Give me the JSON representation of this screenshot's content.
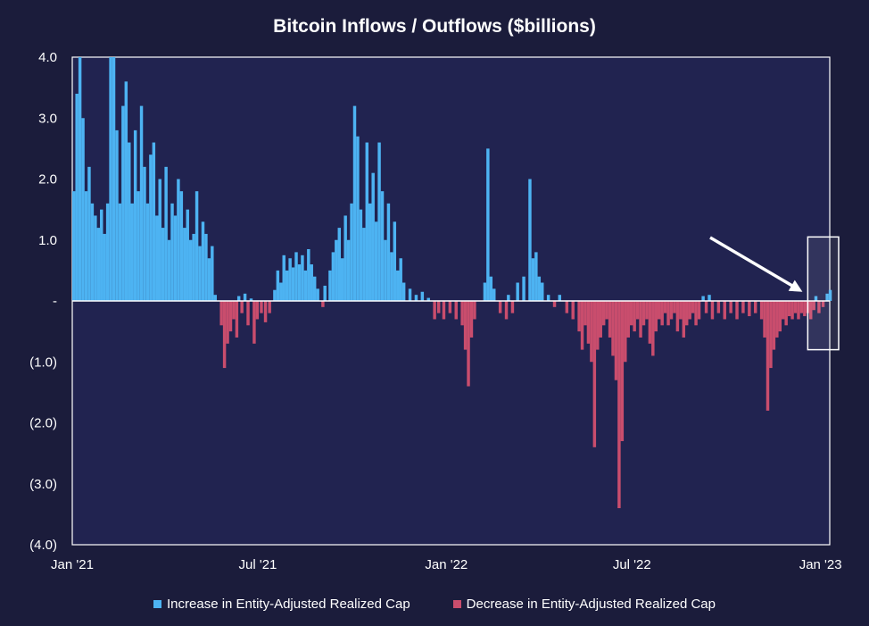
{
  "chart_data": {
    "type": "bar",
    "title": "Bitcoin Inflows / Outflows ($billions)",
    "xlabel": "",
    "ylabel": "",
    "ylim": [
      -4.0,
      4.0
    ],
    "y_tick_labels": [
      "4.0",
      "3.0",
      "2.0",
      "1.0",
      "-",
      "(1.0)",
      "(2.0)",
      "(3.0)",
      "(4.0)"
    ],
    "y_tick_values": [
      4,
      3,
      2,
      1,
      0,
      -1,
      -2,
      -3,
      -4
    ],
    "x_tick_labels": [
      "Jan '21",
      "Jul '21",
      "Jan '22",
      "Jul '22",
      "Jan '23"
    ],
    "x_tick_dates": [
      "2021-01-01",
      "2021-07-01",
      "2022-01-01",
      "2022-07-01",
      "2023-01-01"
    ],
    "x_range": [
      "2021-01-01",
      "2023-01-10"
    ],
    "grid": false,
    "legend_placement": "bottom",
    "series": [
      {
        "name": "Increase in Entity-Adjusted Realized Cap",
        "color": "#4db3f2",
        "points": [
          [
            "2021-01-01",
            1.8
          ],
          [
            "2021-01-04",
            3.4
          ],
          [
            "2021-01-07",
            4.0
          ],
          [
            "2021-01-10",
            3.0
          ],
          [
            "2021-01-13",
            1.8
          ],
          [
            "2021-01-16",
            2.2
          ],
          [
            "2021-01-19",
            1.6
          ],
          [
            "2021-01-22",
            1.4
          ],
          [
            "2021-01-25",
            1.2
          ],
          [
            "2021-01-28",
            1.5
          ],
          [
            "2021-01-31",
            1.1
          ],
          [
            "2021-02-03",
            1.6
          ],
          [
            "2021-02-06",
            4.0
          ],
          [
            "2021-02-09",
            4.0
          ],
          [
            "2021-02-12",
            2.8
          ],
          [
            "2021-02-15",
            1.6
          ],
          [
            "2021-02-18",
            3.2
          ],
          [
            "2021-02-21",
            3.6
          ],
          [
            "2021-02-24",
            2.6
          ],
          [
            "2021-02-27",
            1.6
          ],
          [
            "2021-03-02",
            2.8
          ],
          [
            "2021-03-05",
            1.8
          ],
          [
            "2021-03-08",
            3.2
          ],
          [
            "2021-03-11",
            2.2
          ],
          [
            "2021-03-14",
            1.6
          ],
          [
            "2021-03-17",
            2.4
          ],
          [
            "2021-03-20",
            2.6
          ],
          [
            "2021-03-23",
            1.4
          ],
          [
            "2021-03-26",
            2.0
          ],
          [
            "2021-03-29",
            1.2
          ],
          [
            "2021-04-01",
            2.2
          ],
          [
            "2021-04-04",
            1.0
          ],
          [
            "2021-04-07",
            1.6
          ],
          [
            "2021-04-10",
            1.4
          ],
          [
            "2021-04-13",
            2.0
          ],
          [
            "2021-04-16",
            1.8
          ],
          [
            "2021-04-19",
            1.2
          ],
          [
            "2021-04-22",
            1.5
          ],
          [
            "2021-04-25",
            1.0
          ],
          [
            "2021-04-28",
            1.1
          ],
          [
            "2021-05-01",
            1.8
          ],
          [
            "2021-05-04",
            0.9
          ],
          [
            "2021-05-07",
            1.3
          ],
          [
            "2021-05-10",
            1.1
          ],
          [
            "2021-05-13",
            0.7
          ],
          [
            "2021-05-16",
            0.9
          ],
          [
            "2021-05-19",
            0.1
          ],
          [
            "2021-06-11",
            0.08
          ],
          [
            "2021-06-17",
            0.12
          ],
          [
            "2021-06-23",
            0.04
          ],
          [
            "2021-07-16",
            0.18
          ],
          [
            "2021-07-19",
            0.5
          ],
          [
            "2021-07-22",
            0.3
          ],
          [
            "2021-07-25",
            0.75
          ],
          [
            "2021-07-28",
            0.5
          ],
          [
            "2021-07-31",
            0.7
          ],
          [
            "2021-08-03",
            0.55
          ],
          [
            "2021-08-06",
            0.8
          ],
          [
            "2021-08-09",
            0.6
          ],
          [
            "2021-08-12",
            0.75
          ],
          [
            "2021-08-15",
            0.5
          ],
          [
            "2021-08-18",
            0.85
          ],
          [
            "2021-08-21",
            0.6
          ],
          [
            "2021-08-24",
            0.4
          ],
          [
            "2021-08-27",
            0.2
          ],
          [
            "2021-09-03",
            0.25
          ],
          [
            "2021-09-08",
            0.5
          ],
          [
            "2021-09-11",
            0.8
          ],
          [
            "2021-09-14",
            1.0
          ],
          [
            "2021-09-17",
            1.2
          ],
          [
            "2021-09-20",
            0.7
          ],
          [
            "2021-09-23",
            1.4
          ],
          [
            "2021-09-26",
            1.0
          ],
          [
            "2021-09-29",
            1.6
          ],
          [
            "2021-10-02",
            3.2
          ],
          [
            "2021-10-05",
            2.7
          ],
          [
            "2021-10-08",
            1.5
          ],
          [
            "2021-10-11",
            1.2
          ],
          [
            "2021-10-14",
            2.6
          ],
          [
            "2021-10-17",
            1.6
          ],
          [
            "2021-10-20",
            2.1
          ],
          [
            "2021-10-23",
            1.3
          ],
          [
            "2021-10-26",
            2.6
          ],
          [
            "2021-10-29",
            1.8
          ],
          [
            "2021-11-01",
            1.0
          ],
          [
            "2021-11-04",
            1.6
          ],
          [
            "2021-11-07",
            0.8
          ],
          [
            "2021-11-10",
            1.3
          ],
          [
            "2021-11-13",
            0.5
          ],
          [
            "2021-11-16",
            0.7
          ],
          [
            "2021-11-19",
            0.3
          ],
          [
            "2021-11-25",
            0.2
          ],
          [
            "2021-12-01",
            0.1
          ],
          [
            "2021-12-07",
            0.15
          ],
          [
            "2021-12-13",
            0.05
          ],
          [
            "2022-02-06",
            0.3
          ],
          [
            "2022-02-09",
            2.5
          ],
          [
            "2022-02-12",
            0.4
          ],
          [
            "2022-02-15",
            0.2
          ],
          [
            "2022-03-01",
            0.1
          ],
          [
            "2022-03-10",
            0.3
          ],
          [
            "2022-03-16",
            0.4
          ],
          [
            "2022-03-22",
            2.0
          ],
          [
            "2022-03-25",
            0.7
          ],
          [
            "2022-03-28",
            0.8
          ],
          [
            "2022-03-31",
            0.4
          ],
          [
            "2022-04-03",
            0.3
          ],
          [
            "2022-04-09",
            0.1
          ],
          [
            "2022-04-20",
            0.1
          ],
          [
            "2022-09-07",
            0.08
          ],
          [
            "2022-09-13",
            0.1
          ],
          [
            "2022-12-26",
            0.08
          ],
          [
            "2023-01-06",
            0.12
          ],
          [
            "2023-01-09",
            0.18
          ]
        ]
      },
      {
        "name": "Decrease in Entity-Adjusted Realized Cap",
        "color": "#c94d6d",
        "points": [
          [
            "2021-05-25",
            -0.4
          ],
          [
            "2021-05-28",
            -1.1
          ],
          [
            "2021-05-31",
            -0.7
          ],
          [
            "2021-06-03",
            -0.5
          ],
          [
            "2021-06-06",
            -0.3
          ],
          [
            "2021-06-09",
            -0.6
          ],
          [
            "2021-06-14",
            -0.2
          ],
          [
            "2021-06-20",
            -0.4
          ],
          [
            "2021-06-26",
            -0.7
          ],
          [
            "2021-06-29",
            -0.3
          ],
          [
            "2021-07-03",
            -0.2
          ],
          [
            "2021-07-07",
            -0.35
          ],
          [
            "2021-07-11",
            -0.2
          ],
          [
            "2021-09-01",
            -0.1
          ],
          [
            "2021-12-19",
            -0.3
          ],
          [
            "2021-12-23",
            -0.2
          ],
          [
            "2021-12-28",
            -0.3
          ],
          [
            "2022-01-03",
            -0.2
          ],
          [
            "2022-01-09",
            -0.3
          ],
          [
            "2022-01-15",
            -0.4
          ],
          [
            "2022-01-18",
            -0.8
          ],
          [
            "2022-01-21",
            -1.4
          ],
          [
            "2022-01-24",
            -0.6
          ],
          [
            "2022-01-27",
            -0.3
          ],
          [
            "2022-02-21",
            -0.2
          ],
          [
            "2022-02-27",
            -0.3
          ],
          [
            "2022-03-05",
            -0.2
          ],
          [
            "2022-04-15",
            -0.1
          ],
          [
            "2022-04-27",
            -0.2
          ],
          [
            "2022-05-03",
            -0.3
          ],
          [
            "2022-05-09",
            -0.5
          ],
          [
            "2022-05-12",
            -0.8
          ],
          [
            "2022-05-15",
            -0.4
          ],
          [
            "2022-05-18",
            -0.7
          ],
          [
            "2022-05-21",
            -1.0
          ],
          [
            "2022-05-24",
            -2.4
          ],
          [
            "2022-05-27",
            -0.8
          ],
          [
            "2022-05-30",
            -0.6
          ],
          [
            "2022-06-02",
            -0.4
          ],
          [
            "2022-06-05",
            -0.3
          ],
          [
            "2022-06-08",
            -0.6
          ],
          [
            "2022-06-11",
            -0.9
          ],
          [
            "2022-06-14",
            -1.3
          ],
          [
            "2022-06-17",
            -3.4
          ],
          [
            "2022-06-20",
            -2.3
          ],
          [
            "2022-06-23",
            -1.0
          ],
          [
            "2022-06-26",
            -0.6
          ],
          [
            "2022-06-29",
            -0.4
          ],
          [
            "2022-07-02",
            -0.5
          ],
          [
            "2022-07-05",
            -0.3
          ],
          [
            "2022-07-08",
            -0.6
          ],
          [
            "2022-07-11",
            -0.4
          ],
          [
            "2022-07-14",
            -0.3
          ],
          [
            "2022-07-17",
            -0.7
          ],
          [
            "2022-07-20",
            -0.9
          ],
          [
            "2022-07-23",
            -0.5
          ],
          [
            "2022-07-26",
            -0.3
          ],
          [
            "2022-07-29",
            -0.4
          ],
          [
            "2022-08-01",
            -0.2
          ],
          [
            "2022-08-04",
            -0.4
          ],
          [
            "2022-08-07",
            -0.3
          ],
          [
            "2022-08-10",
            -0.2
          ],
          [
            "2022-08-13",
            -0.5
          ],
          [
            "2022-08-16",
            -0.3
          ],
          [
            "2022-08-19",
            -0.6
          ],
          [
            "2022-08-22",
            -0.4
          ],
          [
            "2022-08-25",
            -0.3
          ],
          [
            "2022-08-28",
            -0.2
          ],
          [
            "2022-08-31",
            -0.4
          ],
          [
            "2022-09-03",
            -0.3
          ],
          [
            "2022-09-10",
            -0.2
          ],
          [
            "2022-09-16",
            -0.3
          ],
          [
            "2022-09-22",
            -0.2
          ],
          [
            "2022-09-28",
            -0.3
          ],
          [
            "2022-10-04",
            -0.2
          ],
          [
            "2022-10-10",
            -0.3
          ],
          [
            "2022-10-16",
            -0.2
          ],
          [
            "2022-10-22",
            -0.25
          ],
          [
            "2022-10-28",
            -0.2
          ],
          [
            "2022-11-03",
            -0.3
          ],
          [
            "2022-11-06",
            -0.6
          ],
          [
            "2022-11-09",
            -1.8
          ],
          [
            "2022-11-12",
            -1.1
          ],
          [
            "2022-11-15",
            -0.8
          ],
          [
            "2022-11-18",
            -0.6
          ],
          [
            "2022-11-21",
            -0.5
          ],
          [
            "2022-11-24",
            -0.3
          ],
          [
            "2022-11-27",
            -0.4
          ],
          [
            "2022-11-30",
            -0.25
          ],
          [
            "2022-12-03",
            -0.3
          ],
          [
            "2022-12-06",
            -0.2
          ],
          [
            "2022-12-09",
            -0.3
          ],
          [
            "2022-12-12",
            -0.2
          ],
          [
            "2022-12-15",
            -0.25
          ],
          [
            "2022-12-18",
            -0.2
          ],
          [
            "2022-12-21",
            -0.3
          ],
          [
            "2022-12-24",
            -0.15
          ],
          [
            "2022-12-29",
            -0.2
          ],
          [
            "2023-01-02",
            -0.1
          ]
        ]
      }
    ],
    "annotation": "arrow pointing to highlighted recent period",
    "highlight_range": [
      "2022-12-30",
      "2023-01-10"
    ],
    "highlight_ylim": [
      -0.8,
      1.05
    ]
  }
}
